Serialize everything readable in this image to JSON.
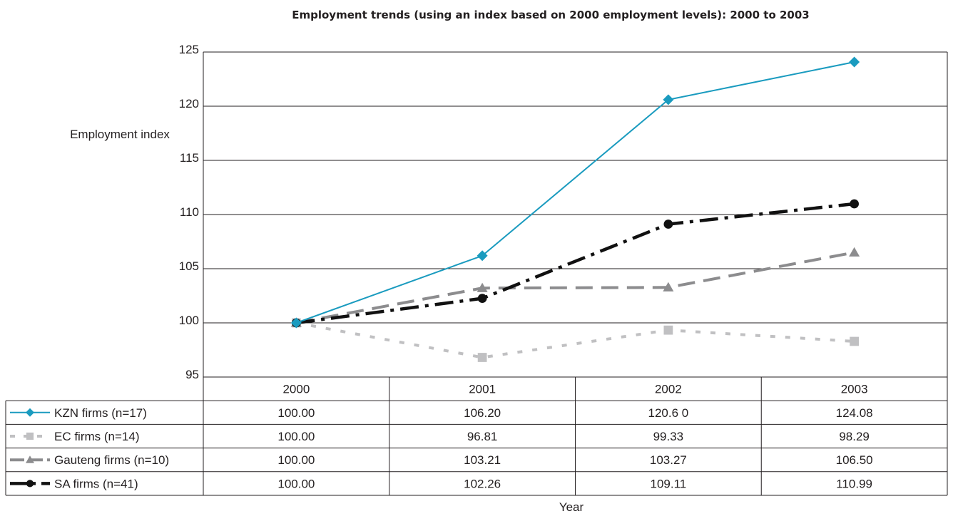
{
  "chart_data": {
    "type": "line",
    "title": "Employment trends (using an index based on 2000 employment levels): 2000 to 2003",
    "ylabel": "Employment index",
    "xlabel": "Year",
    "ylim": [
      95,
      125
    ],
    "yticks": [
      95,
      100,
      105,
      110,
      115,
      120,
      125
    ],
    "grid": true,
    "legend": "data-table-left",
    "categories": [
      "2000",
      "2001",
      "2002",
      "2003"
    ],
    "series": [
      {
        "name": "KZN firms (n=17)",
        "values": [
          100.0,
          106.2,
          120.6,
          124.08
        ],
        "labels": [
          "100.00",
          "106.20",
          "120.6 0",
          "124.08"
        ],
        "color": "#1a9bbf",
        "marker": "diamond-icon"
      },
      {
        "name": "EC firms (n=14)",
        "values": [
          100.0,
          96.81,
          99.33,
          98.29
        ],
        "labels": [
          "100.00",
          "96.81",
          "99.33",
          "98.29"
        ],
        "color": "#c0c0c2",
        "marker": "square-icon"
      },
      {
        "name": "Gauteng firms (n=10)",
        "values": [
          100.0,
          103.21,
          103.27,
          106.5
        ],
        "labels": [
          "100.00",
          "103.21",
          "103.27",
          "106.50"
        ],
        "color": "#8c8c8e",
        "marker": "triangle-icon"
      },
      {
        "name": "SA firms (n=41)",
        "values": [
          100.0,
          102.26,
          109.11,
          110.99
        ],
        "labels": [
          "100.00",
          "102.26",
          "109.11",
          "110.99"
        ],
        "color": "#111111",
        "marker": "circle-icon"
      }
    ]
  }
}
